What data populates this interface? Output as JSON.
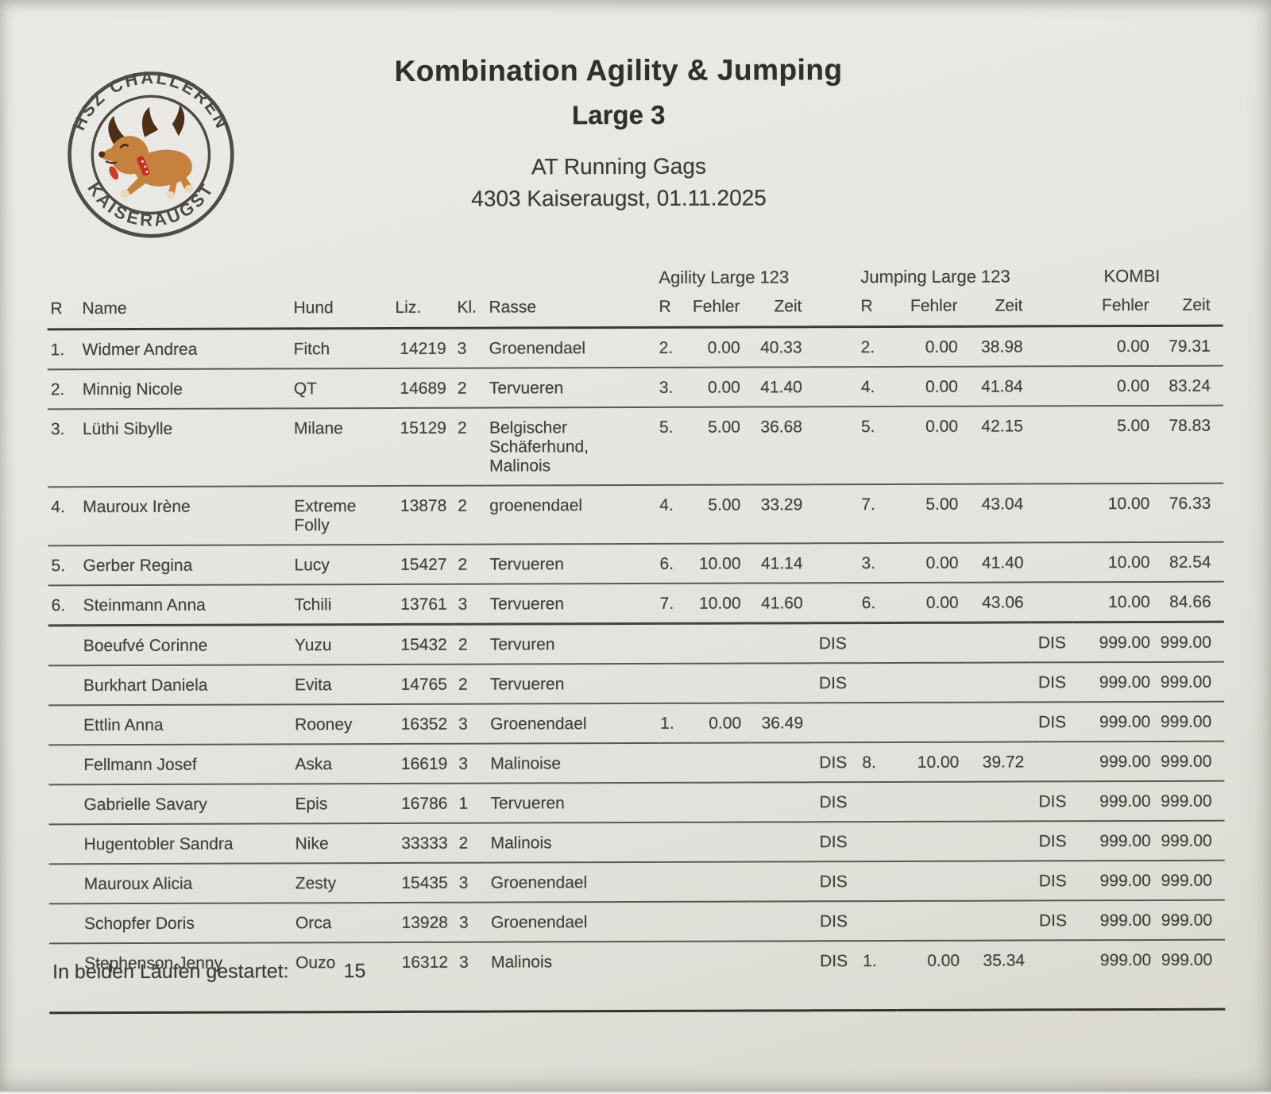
{
  "logo": {
    "top_text": "HSZ CHALLEREN",
    "bottom_text": "KAISERAUGST",
    "colors": {
      "ring": "#4d4d42",
      "text": "#4b4b40",
      "body": "#c6813f",
      "dark": "#4e3019",
      "collar": "#c03224",
      "tongue": "#cc3a28",
      "paw": "#ead9b9"
    }
  },
  "header": {
    "title_line1": "Kombination Agility & Jumping",
    "title_line2": "Large 3",
    "subtitle_line1": "AT Running Gags",
    "subtitle_line2": "4303 Kaiseraugst, 01.11.2025"
  },
  "table": {
    "group_headers": {
      "agility": "Agility Large 123",
      "jumping": "Jumping Large 123",
      "kombi": "KOMBI"
    },
    "columns": {
      "r": "R",
      "name": "Name",
      "hund": "Hund",
      "liz": "Liz.",
      "kl": "Kl.",
      "rasse": "Rasse",
      "fehler": "Fehler",
      "zeit": "Zeit"
    },
    "rows": [
      {
        "r": "1.",
        "name": "Widmer Andrea",
        "hund": "Fitch",
        "liz": "14219",
        "kl": "3",
        "rasse": "Groenendael",
        "ar": "2.",
        "af": "0.00",
        "az": "40.33",
        "adis": "",
        "jr": "2.",
        "jf": "0.00",
        "jz": "38.98",
        "jdis": "",
        "kf": "0.00",
        "kz": "79.31"
      },
      {
        "r": "2.",
        "name": "Minnig Nicole",
        "hund": "QT",
        "liz": "14689",
        "kl": "2",
        "rasse": "Tervueren",
        "ar": "3.",
        "af": "0.00",
        "az": "41.40",
        "adis": "",
        "jr": "4.",
        "jf": "0.00",
        "jz": "41.84",
        "jdis": "",
        "kf": "0.00",
        "kz": "83.24"
      },
      {
        "r": "3.",
        "name": "Lüthi Sibylle",
        "hund": "Milane",
        "liz": "15129",
        "kl": "2",
        "rasse": "Belgischer Schäferhund, Malinois",
        "ar": "5.",
        "af": "5.00",
        "az": "36.68",
        "adis": "",
        "jr": "5.",
        "jf": "0.00",
        "jz": "42.15",
        "jdis": "",
        "kf": "5.00",
        "kz": "78.83"
      },
      {
        "r": "4.",
        "name": "Mauroux Irène",
        "hund": "Extreme Folly",
        "liz": "13878",
        "kl": "2",
        "rasse": "groenendael",
        "ar": "4.",
        "af": "5.00",
        "az": "33.29",
        "adis": "",
        "jr": "7.",
        "jf": "5.00",
        "jz": "43.04",
        "jdis": "",
        "kf": "10.00",
        "kz": "76.33"
      },
      {
        "r": "5.",
        "name": "Gerber Regina",
        "hund": "Lucy",
        "liz": "15427",
        "kl": "2",
        "rasse": "Tervueren",
        "ar": "6.",
        "af": "10.00",
        "az": "41.14",
        "adis": "",
        "jr": "3.",
        "jf": "0.00",
        "jz": "41.40",
        "jdis": "",
        "kf": "10.00",
        "kz": "82.54"
      },
      {
        "r": "6.",
        "name": "Steinmann Anna",
        "hund": "Tchili",
        "liz": "13761",
        "kl": "3",
        "rasse": "Tervueren",
        "ar": "7.",
        "af": "10.00",
        "az": "41.60",
        "adis": "",
        "jr": "6.",
        "jf": "0.00",
        "jz": "43.06",
        "jdis": "",
        "kf": "10.00",
        "kz": "84.66"
      },
      {
        "r": "",
        "name": "Boeufvé Corinne",
        "hund": "Yuzu",
        "liz": "15432",
        "kl": "2",
        "rasse": "Tervuren",
        "ar": "",
        "af": "",
        "az": "",
        "adis": "DIS",
        "jr": "",
        "jf": "",
        "jz": "",
        "jdis": "DIS",
        "kf": "999.00",
        "kz": "999.00"
      },
      {
        "r": "",
        "name": "Burkhart Daniela",
        "hund": "Evita",
        "liz": "14765",
        "kl": "2",
        "rasse": "Tervueren",
        "ar": "",
        "af": "",
        "az": "",
        "adis": "DIS",
        "jr": "",
        "jf": "",
        "jz": "",
        "jdis": "DIS",
        "kf": "999.00",
        "kz": "999.00"
      },
      {
        "r": "",
        "name": "Ettlin Anna",
        "hund": "Rooney",
        "liz": "16352",
        "kl": "3",
        "rasse": "Groenendael",
        "ar": "1.",
        "af": "0.00",
        "az": "36.49",
        "adis": "",
        "jr": "",
        "jf": "",
        "jz": "",
        "jdis": "DIS",
        "kf": "999.00",
        "kz": "999.00"
      },
      {
        "r": "",
        "name": "Fellmann Josef",
        "hund": "Aska",
        "liz": "16619",
        "kl": "3",
        "rasse": "Malinoise",
        "ar": "",
        "af": "",
        "az": "",
        "adis": "DIS",
        "jr": "8.",
        "jf": "10.00",
        "jz": "39.72",
        "jdis": "",
        "kf": "999.00",
        "kz": "999.00"
      },
      {
        "r": "",
        "name": "Gabrielle Savary",
        "hund": "Epis",
        "liz": "16786",
        "kl": "1",
        "rasse": "Tervueren",
        "ar": "",
        "af": "",
        "az": "",
        "adis": "DIS",
        "jr": "",
        "jf": "",
        "jz": "",
        "jdis": "DIS",
        "kf": "999.00",
        "kz": "999.00"
      },
      {
        "r": "",
        "name": "Hugentobler Sandra",
        "hund": "Nike",
        "liz": "33333",
        "kl": "2",
        "rasse": "Malinois",
        "ar": "",
        "af": "",
        "az": "",
        "adis": "DIS",
        "jr": "",
        "jf": "",
        "jz": "",
        "jdis": "DIS",
        "kf": "999.00",
        "kz": "999.00"
      },
      {
        "r": "",
        "name": "Mauroux Alicia",
        "hund": "Zesty",
        "liz": "15435",
        "kl": "3",
        "rasse": "Groenendael",
        "ar": "",
        "af": "",
        "az": "",
        "adis": "DIS",
        "jr": "",
        "jf": "",
        "jz": "",
        "jdis": "DIS",
        "kf": "999.00",
        "kz": "999.00"
      },
      {
        "r": "",
        "name": "Schopfer Doris",
        "hund": "Orca",
        "liz": "13928",
        "kl": "3",
        "rasse": "Groenendael",
        "ar": "",
        "af": "",
        "az": "",
        "adis": "DIS",
        "jr": "",
        "jf": "",
        "jz": "",
        "jdis": "DIS",
        "kf": "999.00",
        "kz": "999.00"
      },
      {
        "r": "",
        "name": "Stephenson Jenny",
        "hund": "Ouzo",
        "liz": "16312",
        "kl": "3",
        "rasse": "Malinois",
        "ar": "",
        "af": "",
        "az": "",
        "adis": "DIS",
        "jr": "1.",
        "jf": "0.00",
        "jz": "35.34",
        "jdis": "",
        "kf": "999.00",
        "kz": "999.00"
      }
    ]
  },
  "footer": {
    "label": "In beiden Läufen gestartet:",
    "value": "15"
  }
}
